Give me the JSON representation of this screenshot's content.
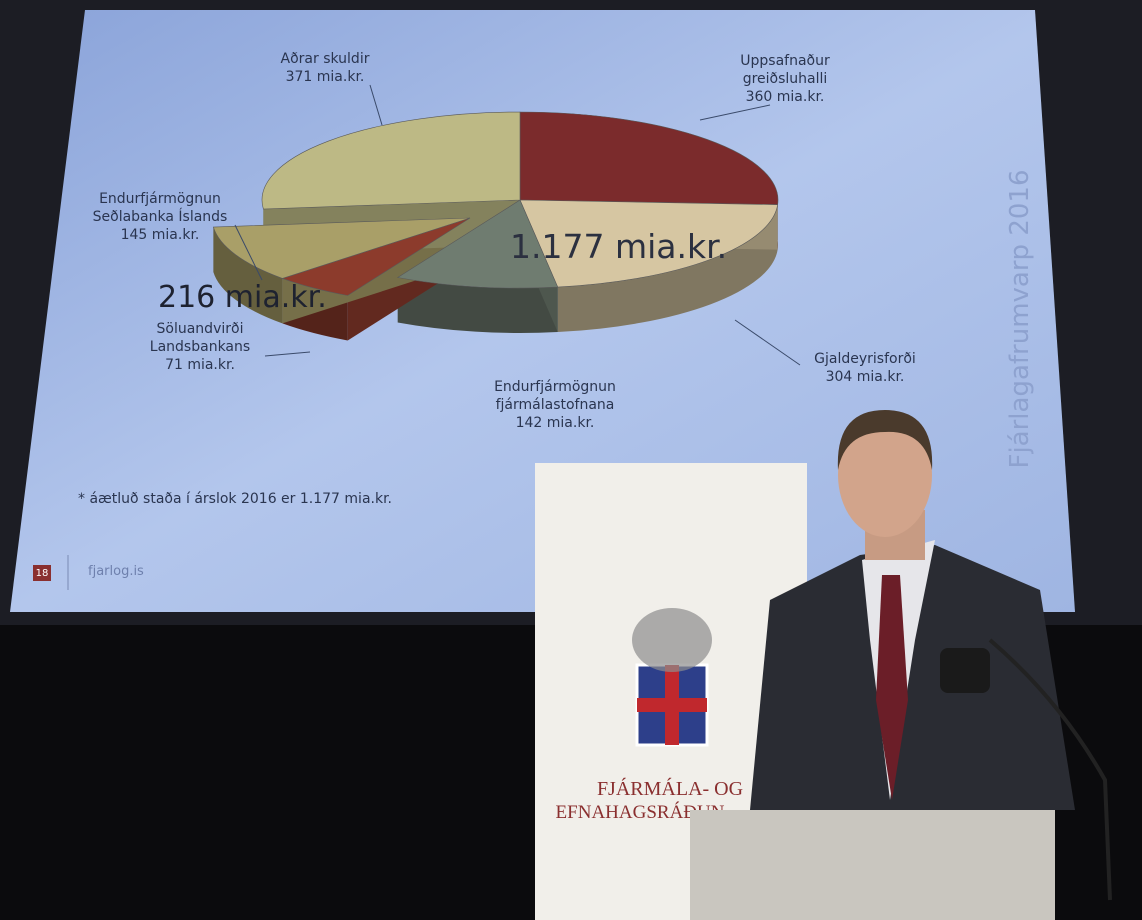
{
  "chart_data": {
    "type": "pie",
    "categories": [
      "Uppsafnaður greiðsluhalli",
      "Gjaldeyrisforði",
      "Endurfjármögnun fjármálastofnana",
      "Söluandvirði Landsbankans",
      "Endurfjármögnun Seðlabanka Íslands",
      "Aðrar skuldir"
    ],
    "values": [
      360,
      304,
      142,
      71,
      145,
      371
    ],
    "value_labels": [
      "360 mia.kr.",
      "304 mia.kr.",
      "142 mia.kr.",
      "71 mia.kr.",
      "145 mia.kr.",
      "371 mia.kr."
    ],
    "colors": [
      "#7b2b2c",
      "#d6c6a2",
      "#6f7c70",
      "#8c3b2c",
      "#a99f68",
      "#bdb985"
    ],
    "exploded": [
      false,
      false,
      false,
      true,
      true,
      false
    ],
    "center_label": "1.177 mia.kr.",
    "group_label": "216 mia.kr.",
    "footnote": "* áætluð staða í árslok 2016 er 1.177 mia.kr.",
    "page_number": "18",
    "site": "fjarlog.is",
    "side_title": "Fjárlagafrumvarp 2016"
  },
  "banner": {
    "line1": "FJÁRMÁLA- OG",
    "line2": "EFNAHAGSRÁÐUN"
  }
}
